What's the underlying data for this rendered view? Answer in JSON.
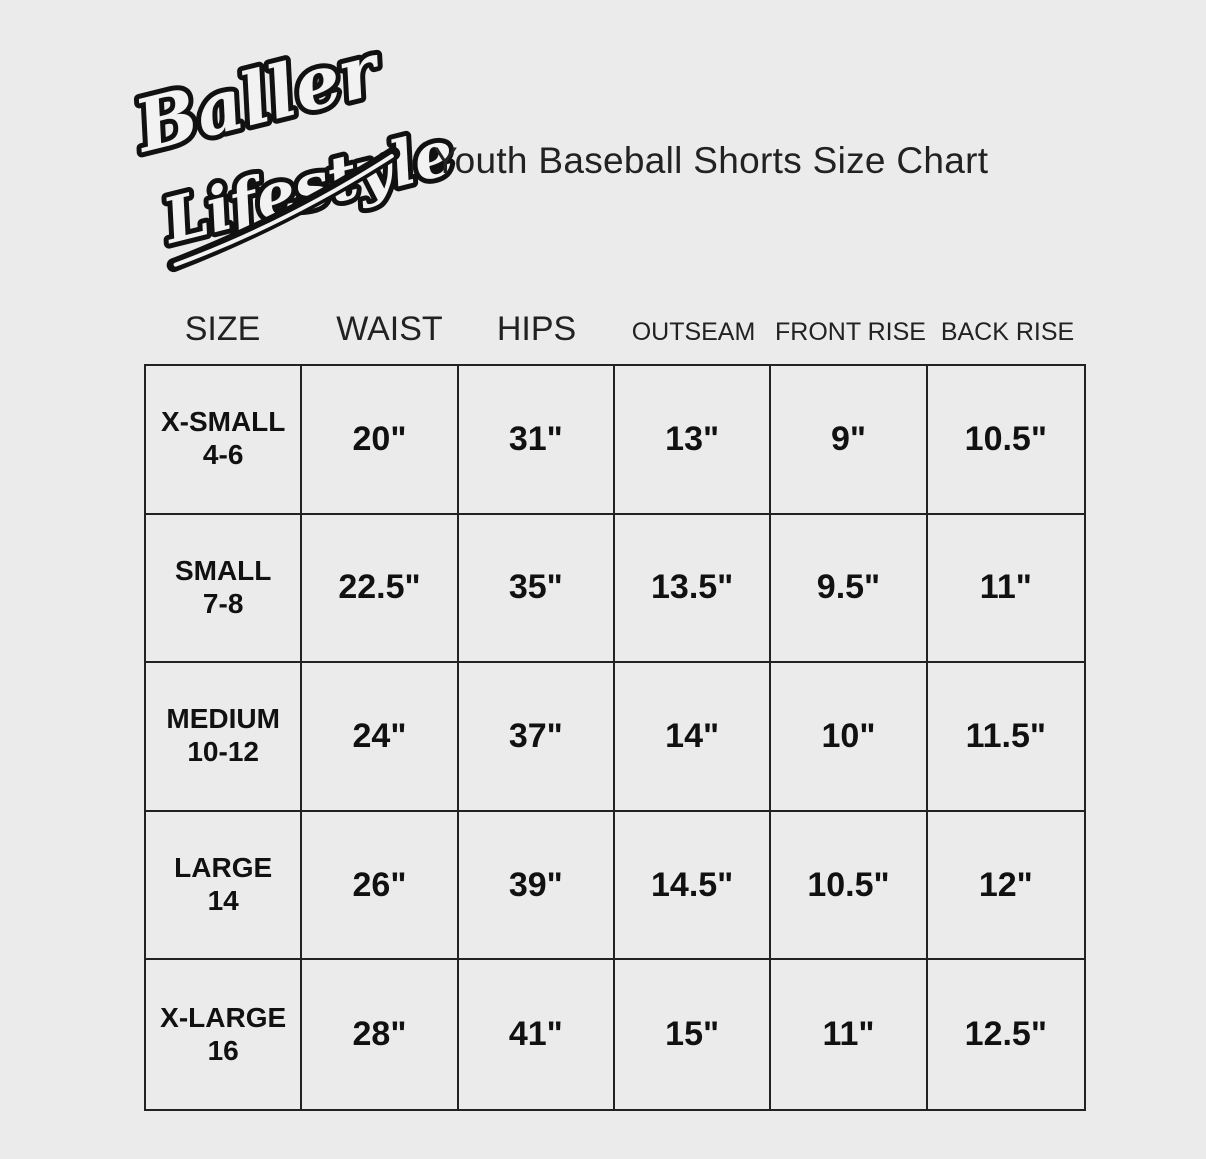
{
  "logo": {
    "text_line1": "Baller",
    "text_line2": "Lifestyle"
  },
  "title": "Youth Baseball Shorts Size Chart",
  "table": {
    "columns": [
      "SIZE",
      "WAIST",
      "HIPS",
      "OUTSEAM",
      "FRONT RISE",
      "BACK RISE"
    ],
    "rows": [
      {
        "size": "X-SMALL",
        "range": "4-6",
        "waist": "20\"",
        "hips": "31\"",
        "outseam": "13\"",
        "front_rise": "9\"",
        "back_rise": "10.5\""
      },
      {
        "size": "SMALL",
        "range": "7-8",
        "waist": "22.5\"",
        "hips": "35\"",
        "outseam": "13.5\"",
        "front_rise": "9.5\"",
        "back_rise": "11\""
      },
      {
        "size": "MEDIUM",
        "range": "10-12",
        "waist": "24\"",
        "hips": "37\"",
        "outseam": "14\"",
        "front_rise": "10\"",
        "back_rise": "11.5\""
      },
      {
        "size": "LARGE",
        "range": "14",
        "waist": "26\"",
        "hips": "39\"",
        "outseam": "14.5\"",
        "front_rise": "10.5\"",
        "back_rise": "12\""
      },
      {
        "size": "X-LARGE",
        "range": "16",
        "waist": "28\"",
        "hips": "41\"",
        "outseam": "15\"",
        "front_rise": "11\"",
        "back_rise": "12.5\""
      }
    ]
  },
  "colors": {
    "background": "#ebebeb",
    "ink": "#111111"
  }
}
